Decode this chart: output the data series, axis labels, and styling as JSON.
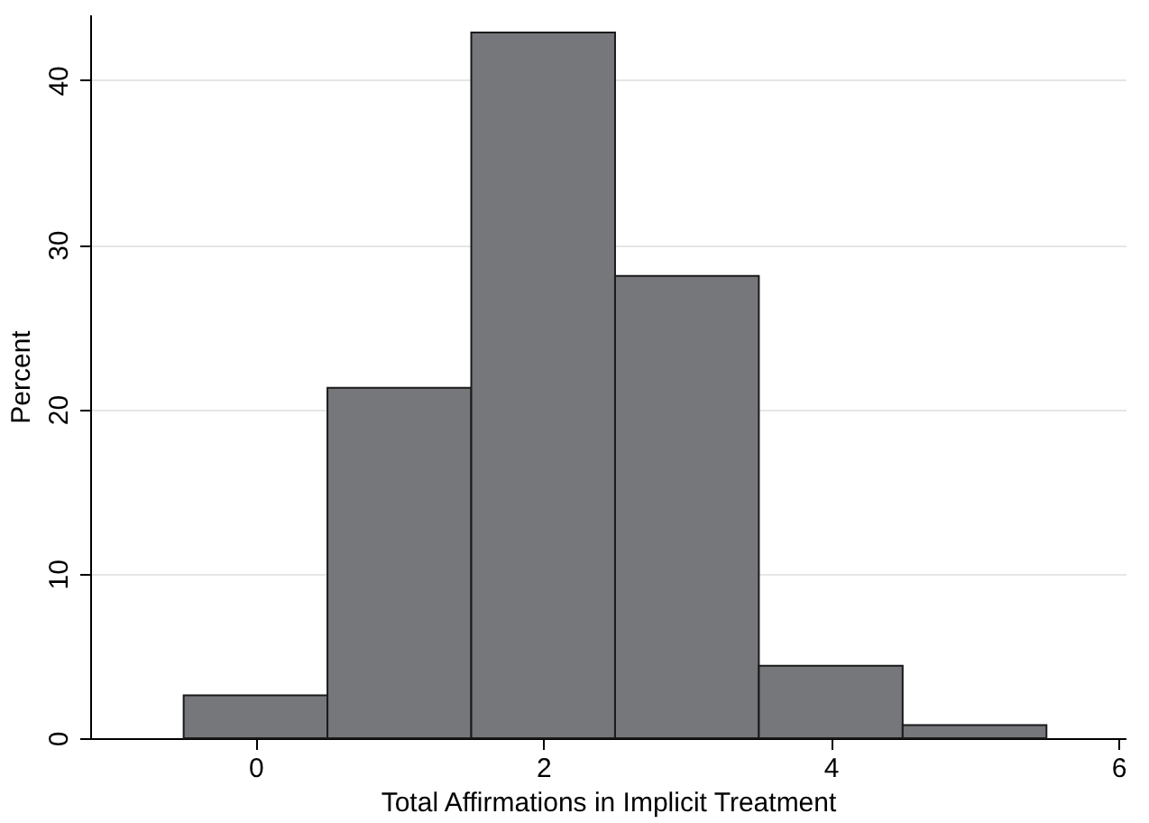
{
  "chart_data": {
    "type": "histogram",
    "xlabel": "Total Affirmations in Implicit Treatment",
    "ylabel": "Percent",
    "bins": [
      -0.5,
      0.5,
      1.5,
      2.5,
      3.5,
      4.5,
      5.5
    ],
    "values": [
      2.6,
      21.3,
      42.9,
      28.1,
      4.4,
      0.8
    ],
    "color": "#76777b",
    "xlim": [
      -1.15,
      6.05
    ],
    "xticks": [
      0,
      2,
      4,
      6
    ],
    "ylim": [
      0,
      44
    ],
    "yticks": [
      0,
      10,
      20,
      30,
      40
    ],
    "grid": "y"
  }
}
